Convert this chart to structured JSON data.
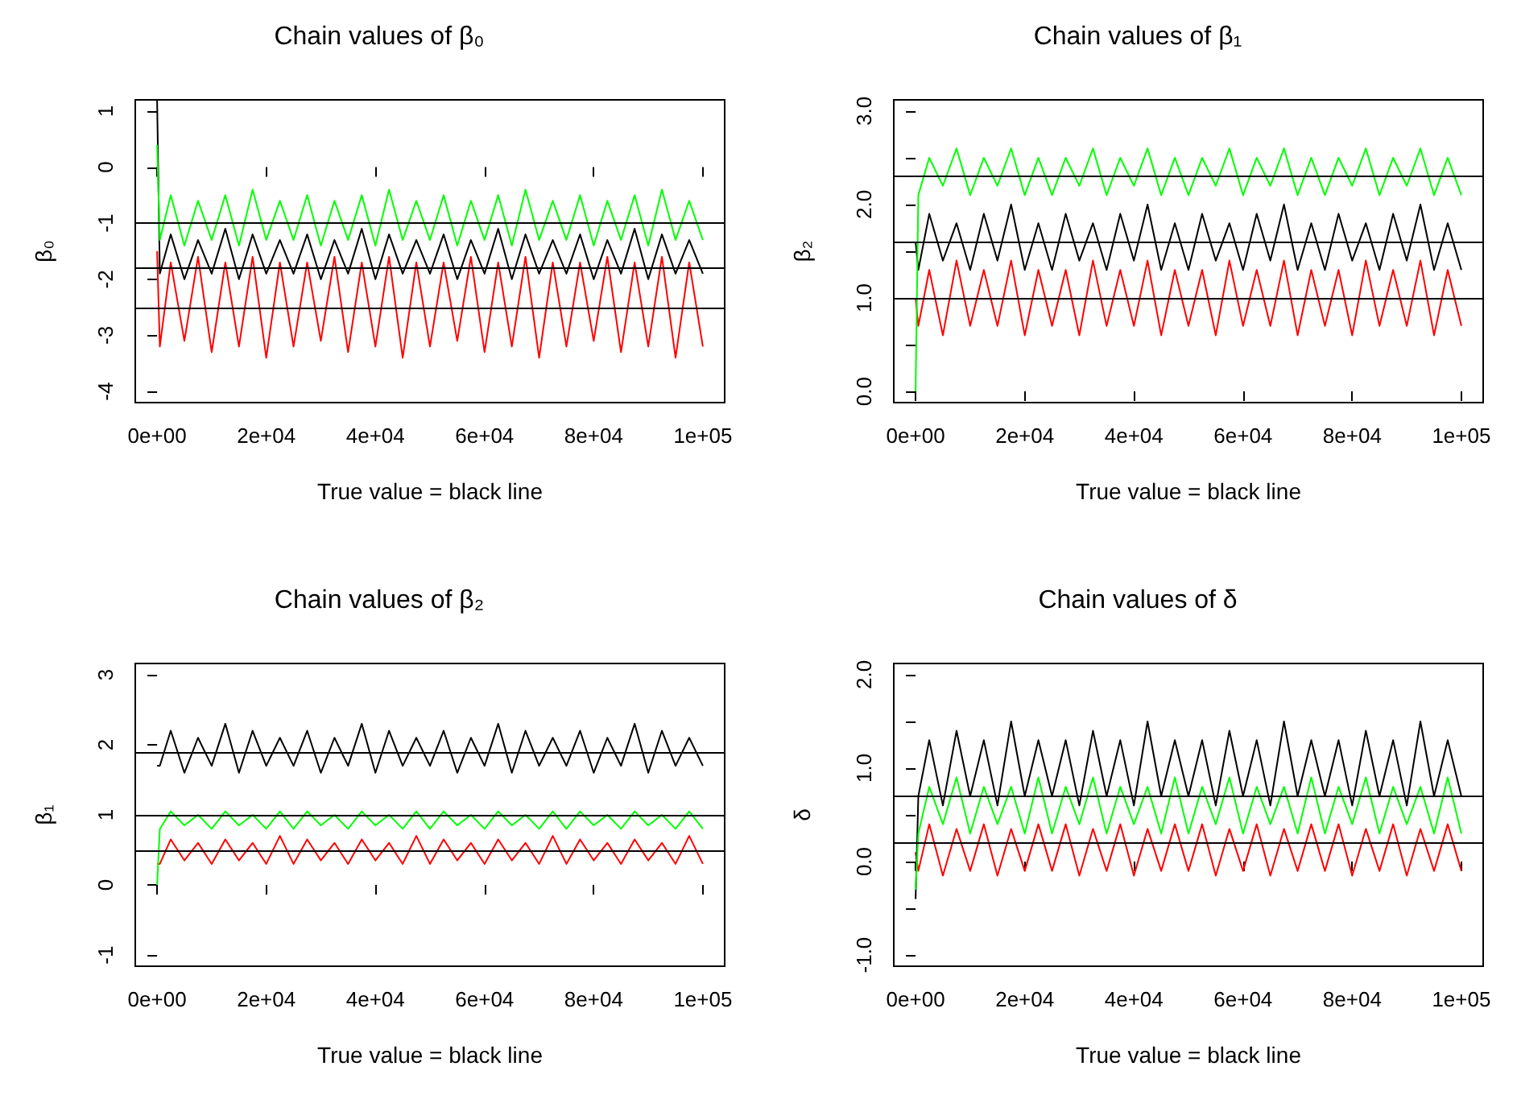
{
  "chart_data": [
    {
      "type": "line",
      "title": "Chain values of β₀",
      "xlabel": "True value = black line",
      "ylabel": "β₀",
      "x": [
        0,
        500,
        2500,
        5000,
        7500,
        10000,
        12500,
        15000,
        17500,
        20000,
        22500,
        25000,
        27500,
        30000,
        32500,
        35000,
        37500,
        40000,
        42500,
        45000,
        47500,
        50000,
        52500,
        55000,
        57500,
        60000,
        62500,
        65000,
        67500,
        70000,
        72500,
        75000,
        77500,
        80000,
        82500,
        85000,
        87500,
        90000,
        92500,
        95000,
        97500,
        100000
      ],
      "series": [
        {
          "color": "#ff0000",
          "values": [
            -1.5,
            -3.2,
            -1.7,
            -3.1,
            -1.6,
            -3.3,
            -1.7,
            -3.2,
            -1.6,
            -3.4,
            -1.7,
            -3.2,
            -1.7,
            -3.1,
            -1.6,
            -3.3,
            -1.7,
            -3.2,
            -1.6,
            -3.4,
            -1.7,
            -3.2,
            -1.7,
            -3.1,
            -1.6,
            -3.3,
            -1.7,
            -3.2,
            -1.6,
            -3.4,
            -1.7,
            -3.2,
            -1.7,
            -3.1,
            -1.6,
            -3.3,
            -1.7,
            -3.2,
            -1.6,
            -3.4,
            -1.7,
            -3.2
          ]
        },
        {
          "color": "#000000",
          "values": [
            1.2,
            -1.9,
            -1.2,
            -2.0,
            -1.3,
            -1.9,
            -1.1,
            -2.0,
            -1.2,
            -1.9,
            -1.3,
            -1.9,
            -1.2,
            -2.0,
            -1.3,
            -1.9,
            -1.1,
            -2.0,
            -1.2,
            -1.9,
            -1.3,
            -1.9,
            -1.2,
            -2.0,
            -1.3,
            -1.9,
            -1.1,
            -2.0,
            -1.2,
            -1.9,
            -1.3,
            -1.9,
            -1.2,
            -2.0,
            -1.3,
            -1.9,
            -1.1,
            -2.0,
            -1.2,
            -1.9,
            -1.3,
            -1.9
          ]
        },
        {
          "color": "#00ff00",
          "values": [
            0.4,
            -1.3,
            -0.5,
            -1.4,
            -0.6,
            -1.3,
            -0.5,
            -1.4,
            -0.4,
            -1.3,
            -0.6,
            -1.3,
            -0.5,
            -1.4,
            -0.6,
            -1.3,
            -0.5,
            -1.4,
            -0.4,
            -1.3,
            -0.6,
            -1.3,
            -0.5,
            -1.4,
            -0.6,
            -1.3,
            -0.5,
            -1.4,
            -0.4,
            -1.3,
            -0.6,
            -1.3,
            -0.5,
            -1.4,
            -0.6,
            -1.3,
            -0.5,
            -1.4,
            -0.4,
            -1.3,
            -0.6,
            -1.3
          ]
        }
      ],
      "xlim": [
        -4000,
        104000
      ],
      "xticks": [
        {
          "value": 0,
          "label": "0e+00"
        },
        {
          "value": 20000,
          "label": "2e+04"
        },
        {
          "value": 40000,
          "label": "4e+04"
        },
        {
          "value": 60000,
          "label": "6e+04"
        },
        {
          "value": 80000,
          "label": "8e+04"
        },
        {
          "value": 100000,
          "label": "1e+05"
        }
      ],
      "ylim": [
        -4.2,
        1.2
      ],
      "yticks": [
        -4,
        -3,
        -2,
        -1,
        0,
        1
      ],
      "ref_lines": [
        {
          "axis": "y",
          "value": -1
        },
        {
          "axis": "y",
          "value": -1.8
        },
        {
          "axis": "y",
          "value": -2.5
        }
      ]
    },
    {
      "type": "line",
      "title": "Chain values of β₁",
      "xlabel": "True value = black line",
      "ylabel": "β₂",
      "x": [
        0,
        500,
        2500,
        5000,
        7500,
        10000,
        12500,
        15000,
        17500,
        20000,
        22500,
        25000,
        27500,
        30000,
        32500,
        35000,
        37500,
        40000,
        42500,
        45000,
        47500,
        50000,
        52500,
        55000,
        57500,
        60000,
        62500,
        65000,
        67500,
        70000,
        72500,
        75000,
        77500,
        80000,
        82500,
        85000,
        87500,
        90000,
        92500,
        95000,
        97500,
        100000
      ],
      "series": [
        {
          "color": "#ff0000",
          "values": [
            1.0,
            0.7,
            1.3,
            0.6,
            1.4,
            0.7,
            1.3,
            0.7,
            1.4,
            0.6,
            1.3,
            0.7,
            1.3,
            0.6,
            1.4,
            0.7,
            1.3,
            0.7,
            1.4,
            0.6,
            1.3,
            0.7,
            1.3,
            0.6,
            1.4,
            0.7,
            1.3,
            0.7,
            1.4,
            0.6,
            1.3,
            0.7,
            1.3,
            0.6,
            1.4,
            0.7,
            1.3,
            0.7,
            1.4,
            0.6,
            1.3,
            0.7
          ]
        },
        {
          "color": "#000000",
          "values": [
            1.6,
            1.3,
            1.9,
            1.4,
            1.8,
            1.3,
            1.9,
            1.4,
            2.0,
            1.3,
            1.8,
            1.3,
            1.9,
            1.4,
            1.8,
            1.3,
            1.9,
            1.4,
            2.0,
            1.3,
            1.8,
            1.3,
            1.9,
            1.4,
            1.8,
            1.3,
            1.9,
            1.4,
            2.0,
            1.3,
            1.8,
            1.3,
            1.9,
            1.4,
            1.8,
            1.3,
            1.9,
            1.4,
            2.0,
            1.3,
            1.8,
            1.3
          ]
        },
        {
          "color": "#00ff00",
          "values": [
            0.0,
            2.1,
            2.5,
            2.2,
            2.6,
            2.1,
            2.5,
            2.2,
            2.6,
            2.1,
            2.5,
            2.1,
            2.5,
            2.2,
            2.6,
            2.1,
            2.5,
            2.2,
            2.6,
            2.1,
            2.5,
            2.1,
            2.5,
            2.2,
            2.6,
            2.1,
            2.5,
            2.2,
            2.6,
            2.1,
            2.5,
            2.1,
            2.5,
            2.2,
            2.6,
            2.1,
            2.5,
            2.2,
            2.6,
            2.1,
            2.5,
            2.1
          ]
        }
      ],
      "xlim": [
        -4000,
        104000
      ],
      "xticks": [
        {
          "value": 0,
          "label": "0e+00"
        },
        {
          "value": 20000,
          "label": "2e+04"
        },
        {
          "value": 40000,
          "label": "4e+04"
        },
        {
          "value": 60000,
          "label": "6e+04"
        },
        {
          "value": 80000,
          "label": "8e+04"
        },
        {
          "value": 100000,
          "label": "1e+05"
        }
      ],
      "ylim": [
        -0.12,
        3.12
      ],
      "yticks": [
        {
          "value": 0,
          "label": "0.0"
        },
        {
          "value": 0.5,
          "label": null
        },
        {
          "value": 1,
          "label": "1.0"
        },
        {
          "value": 1.5,
          "label": null
        },
        {
          "value": 2,
          "label": "2.0"
        },
        {
          "value": 2.5,
          "label": null
        },
        {
          "value": 3,
          "label": "3.0"
        }
      ],
      "ref_lines": [
        {
          "axis": "y",
          "value": 2.3
        },
        {
          "axis": "y",
          "value": 1.6
        },
        {
          "axis": "y",
          "value": 1.0
        }
      ]
    },
    {
      "type": "line",
      "title": "Chain values of β₂",
      "xlabel": "True value = black line",
      "ylabel": "β₁",
      "x": [
        0,
        500,
        2500,
        5000,
        7500,
        10000,
        12500,
        15000,
        17500,
        20000,
        22500,
        25000,
        27500,
        30000,
        32500,
        35000,
        37500,
        40000,
        42500,
        45000,
        47500,
        50000,
        52500,
        55000,
        57500,
        60000,
        62500,
        65000,
        67500,
        70000,
        72500,
        75000,
        77500,
        80000,
        82500,
        85000,
        87500,
        90000,
        92500,
        95000,
        97500,
        100000
      ],
      "series": [
        {
          "color": "#ff0000",
          "values": [
            0.3,
            0.3,
            0.65,
            0.35,
            0.6,
            0.3,
            0.65,
            0.35,
            0.6,
            0.3,
            0.7,
            0.3,
            0.65,
            0.35,
            0.6,
            0.3,
            0.65,
            0.35,
            0.6,
            0.3,
            0.7,
            0.3,
            0.65,
            0.35,
            0.6,
            0.3,
            0.65,
            0.35,
            0.6,
            0.3,
            0.7,
            0.3,
            0.65,
            0.35,
            0.6,
            0.3,
            0.65,
            0.35,
            0.6,
            0.3,
            0.7,
            0.3
          ]
        },
        {
          "color": "#000000",
          "values": [
            1.7,
            1.7,
            2.2,
            1.6,
            2.1,
            1.7,
            2.3,
            1.6,
            2.2,
            1.7,
            2.1,
            1.7,
            2.2,
            1.6,
            2.1,
            1.7,
            2.3,
            1.6,
            2.2,
            1.7,
            2.1,
            1.7,
            2.2,
            1.6,
            2.1,
            1.7,
            2.3,
            1.6,
            2.2,
            1.7,
            2.1,
            1.7,
            2.2,
            1.6,
            2.1,
            1.7,
            2.3,
            1.6,
            2.2,
            1.7,
            2.1,
            1.7
          ]
        },
        {
          "color": "#00ff00",
          "values": [
            0.0,
            0.8,
            1.05,
            0.85,
            1.0,
            0.8,
            1.05,
            0.85,
            1.0,
            0.8,
            1.05,
            0.8,
            1.05,
            0.85,
            1.0,
            0.8,
            1.05,
            0.85,
            1.0,
            0.8,
            1.05,
            0.8,
            1.05,
            0.85,
            1.0,
            0.8,
            1.05,
            0.85,
            1.0,
            0.8,
            1.05,
            0.8,
            1.05,
            0.85,
            1.0,
            0.8,
            1.05,
            0.85,
            1.0,
            0.8,
            1.05,
            0.8
          ]
        }
      ],
      "xlim": [
        -4000,
        104000
      ],
      "xticks": [
        {
          "value": 0,
          "label": "0e+00"
        },
        {
          "value": 20000,
          "label": "2e+04"
        },
        {
          "value": 40000,
          "label": "4e+04"
        },
        {
          "value": 60000,
          "label": "6e+04"
        },
        {
          "value": 80000,
          "label": "8e+04"
        },
        {
          "value": 100000,
          "label": "1e+05"
        }
      ],
      "ylim": [
        -1.16,
        3.16
      ],
      "yticks": [
        -1,
        0,
        1,
        2,
        3
      ],
      "ref_lines": [
        {
          "axis": "y",
          "value": 1.9
        },
        {
          "axis": "y",
          "value": 1.0
        },
        {
          "axis": "y",
          "value": 0.5
        }
      ]
    },
    {
      "type": "line",
      "title": "Chain values of δ",
      "xlabel": "True value = black line",
      "ylabel": "δ",
      "x": [
        0,
        500,
        2500,
        5000,
        7500,
        10000,
        12500,
        15000,
        17500,
        20000,
        22500,
        25000,
        27500,
        30000,
        32500,
        35000,
        37500,
        40000,
        42500,
        45000,
        47500,
        50000,
        52500,
        55000,
        57500,
        60000,
        62500,
        65000,
        67500,
        70000,
        72500,
        75000,
        77500,
        80000,
        82500,
        85000,
        87500,
        90000,
        92500,
        95000,
        97500,
        100000
      ],
      "series": [
        {
          "color": "#ff0000",
          "values": [
            0.1,
            -0.1,
            0.4,
            -0.15,
            0.35,
            -0.1,
            0.4,
            -0.15,
            0.35,
            -0.1,
            0.4,
            -0.1,
            0.4,
            -0.15,
            0.35,
            -0.1,
            0.4,
            -0.15,
            0.35,
            -0.1,
            0.4,
            -0.1,
            0.4,
            -0.15,
            0.35,
            -0.1,
            0.4,
            -0.15,
            0.35,
            -0.1,
            0.4,
            -0.1,
            0.4,
            -0.15,
            0.35,
            -0.1,
            0.4,
            -0.15,
            0.35,
            -0.1,
            0.4,
            -0.1
          ]
        },
        {
          "color": "#000000",
          "values": [
            -0.4,
            0.7,
            1.3,
            0.6,
            1.4,
            0.7,
            1.3,
            0.6,
            1.5,
            0.7,
            1.3,
            0.7,
            1.3,
            0.6,
            1.4,
            0.7,
            1.3,
            0.6,
            1.5,
            0.7,
            1.3,
            0.7,
            1.3,
            0.6,
            1.4,
            0.7,
            1.3,
            0.6,
            1.5,
            0.7,
            1.3,
            0.7,
            1.3,
            0.6,
            1.4,
            0.7,
            1.3,
            0.6,
            1.5,
            0.7,
            1.3,
            0.7
          ]
        },
        {
          "color": "#00ff00",
          "values": [
            -0.3,
            0.3,
            0.8,
            0.4,
            0.9,
            0.3,
            0.8,
            0.4,
            0.8,
            0.3,
            0.9,
            0.3,
            0.8,
            0.4,
            0.9,
            0.3,
            0.8,
            0.4,
            0.8,
            0.3,
            0.9,
            0.3,
            0.8,
            0.4,
            0.9,
            0.3,
            0.8,
            0.4,
            0.8,
            0.3,
            0.9,
            0.3,
            0.8,
            0.4,
            0.9,
            0.3,
            0.8,
            0.4,
            0.8,
            0.3,
            0.9,
            0.3
          ]
        }
      ],
      "xlim": [
        -4000,
        104000
      ],
      "xticks": [
        {
          "value": 0,
          "label": "0e+00"
        },
        {
          "value": 20000,
          "label": "2e+04"
        },
        {
          "value": 40000,
          "label": "4e+04"
        },
        {
          "value": 60000,
          "label": "6e+04"
        },
        {
          "value": 80000,
          "label": "8e+04"
        },
        {
          "value": 100000,
          "label": "1e+05"
        }
      ],
      "ylim": [
        -1.12,
        2.12
      ],
      "yticks": [
        {
          "value": -1,
          "label": "-1.0"
        },
        {
          "value": -0.5,
          "label": null
        },
        {
          "value": 0,
          "label": "0.0"
        },
        {
          "value": 0.5,
          "label": null
        },
        {
          "value": 1,
          "label": "1.0"
        },
        {
          "value": 1.5,
          "label": null
        },
        {
          "value": 2,
          "label": "2.0"
        }
      ],
      "ref_lines": [
        {
          "axis": "y",
          "value": 0.7
        },
        {
          "axis": "y",
          "value": 0.2
        }
      ]
    }
  ]
}
